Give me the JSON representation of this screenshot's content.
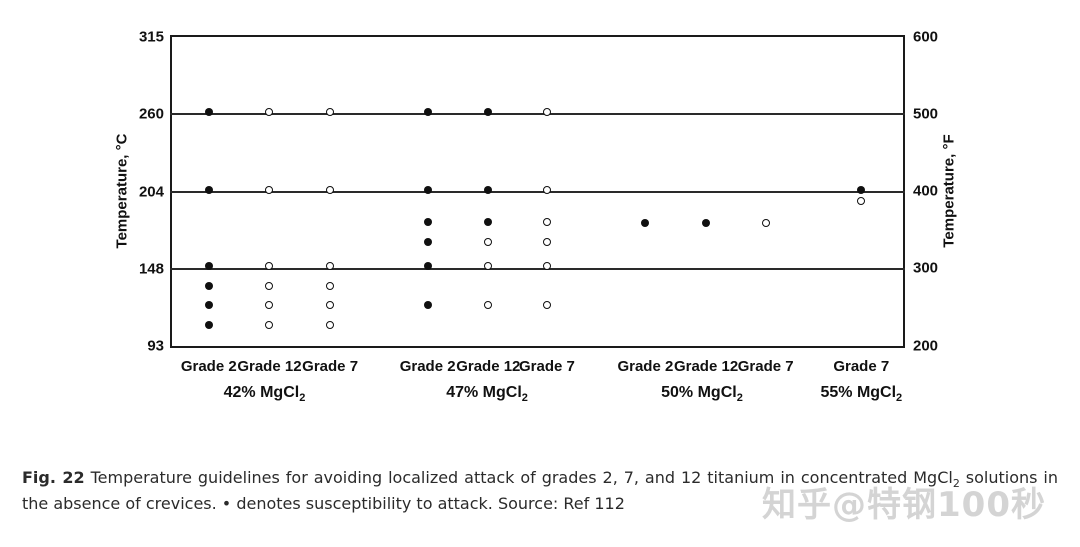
{
  "caption": {
    "fig_label": "Fig. 22",
    "part1": "Temperature guidelines for avoiding localized attack of grades 2, 7, and 12 titanium in concentrated MgCl",
    "sub1": "2",
    "part2": " solutions in the absence of crevices. • denotes susceptibility to attack. Source: Ref 112"
  },
  "watermark": "知乎@特钢100秒",
  "chart_data": {
    "type": "scatter",
    "y_axis_left": {
      "label": "Temperature, °C",
      "ticks": [
        315,
        260,
        204,
        148,
        93
      ]
    },
    "y_axis_right": {
      "label": "Temperature, °F",
      "ticks": [
        600,
        500,
        400,
        300,
        200
      ]
    },
    "ylim_c": [
      93,
      315
    ],
    "ylim_f": [
      200,
      600
    ],
    "gridlines_c": [
      260,
      204,
      148
    ],
    "grid": "horizontal-only",
    "marker_legend": {
      "filled_dot": "denotes susceptibility to attack",
      "open_dot": "no attack"
    },
    "groups": [
      {
        "concentration": "42% MgCl",
        "concentration_sub": "2",
        "label_x_pct": 12.65,
        "columns": [
          {
            "grade": "Grade 2",
            "x_pct": 5.03,
            "filled_c": [
              260,
              204,
              149,
              135,
              121,
              107
            ],
            "open_c": []
          },
          {
            "grade": "Grade 12",
            "x_pct": 13.33,
            "filled_c": [],
            "open_c": [
              260,
              204,
              149,
              135,
              121,
              107
            ]
          },
          {
            "grade": "Grade 7",
            "x_pct": 21.63,
            "filled_c": [],
            "open_c": [
              260,
              204,
              149,
              135,
              121,
              107
            ]
          }
        ]
      },
      {
        "concentration": "47% MgCl",
        "concentration_sub": "2",
        "label_x_pct": 43.1,
        "columns": [
          {
            "grade": "Grade 2",
            "x_pct": 34.97,
            "filled_c": [
              260,
              204,
              181,
              166,
              149,
              121
            ],
            "open_c": []
          },
          {
            "grade": "Grade 12",
            "x_pct": 43.27,
            "filled_c": [
              260,
              204,
              181
            ],
            "open_c": [
              166,
              149,
              121
            ]
          },
          {
            "grade": "Grade 7",
            "x_pct": 51.29,
            "filled_c": [],
            "open_c": [
              260,
              204,
              181,
              166,
              149,
              121
            ]
          }
        ]
      },
      {
        "concentration": "50% MgCl",
        "concentration_sub": "2",
        "label_x_pct": 72.5,
        "columns": [
          {
            "grade": "Grade 2",
            "x_pct": 64.76,
            "filled_c": [
              180
            ],
            "open_c": []
          },
          {
            "grade": "Grade 12",
            "x_pct": 73.06,
            "filled_c": [
              180
            ],
            "open_c": []
          },
          {
            "grade": "Grade 7",
            "x_pct": 81.22,
            "filled_c": [],
            "open_c": [
              180
            ]
          }
        ]
      },
      {
        "concentration": "55% MgCl",
        "concentration_sub": "2",
        "label_x_pct": 94.3,
        "columns": [
          {
            "grade": "Grade 7",
            "x_pct": 94.29,
            "filled_c": [
              204
            ],
            "open_c": [
              196
            ]
          }
        ]
      }
    ]
  }
}
